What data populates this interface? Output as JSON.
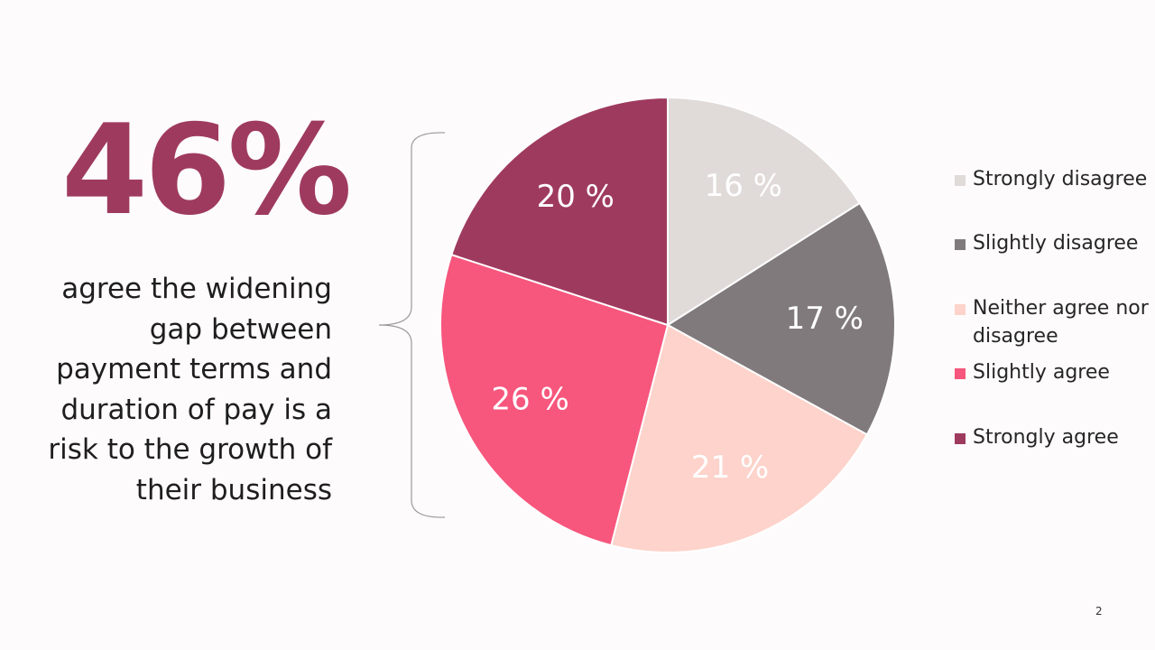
{
  "headline": {
    "stat": "46%",
    "lines": [
      "agree the widening",
      "gap between",
      "payment terms and",
      "duration of pay is a",
      "risk to the growth of",
      "their business"
    ]
  },
  "chart_data": {
    "type": "pie",
    "title": "",
    "categories": [
      "Strongly disagree",
      "Slightly disagree",
      "Neither agree nor disagree",
      "Slightly agree",
      "Strongly agree"
    ],
    "values": [
      16,
      17,
      21,
      26,
      20
    ],
    "labels": [
      "16 %",
      "17 %",
      "21 %",
      "26 %",
      "20 %"
    ],
    "colors": [
      "#e0dad9",
      "#807a7d",
      "#fdd3cb",
      "#f7567d",
      "#9f3a5f"
    ],
    "start_angle_deg": 0,
    "direction": "clockwise",
    "legend_position": "right"
  },
  "legend": {
    "items": [
      {
        "lines": [
          "Strongly disagree"
        ]
      },
      {
        "lines": [
          "Slightly disagree"
        ]
      },
      {
        "lines": [
          "Neither agree nor",
          "disagree"
        ]
      },
      {
        "lines": [
          "Slightly agree"
        ]
      },
      {
        "lines": [
          "Strongly agree"
        ]
      }
    ]
  },
  "page_number": "2"
}
